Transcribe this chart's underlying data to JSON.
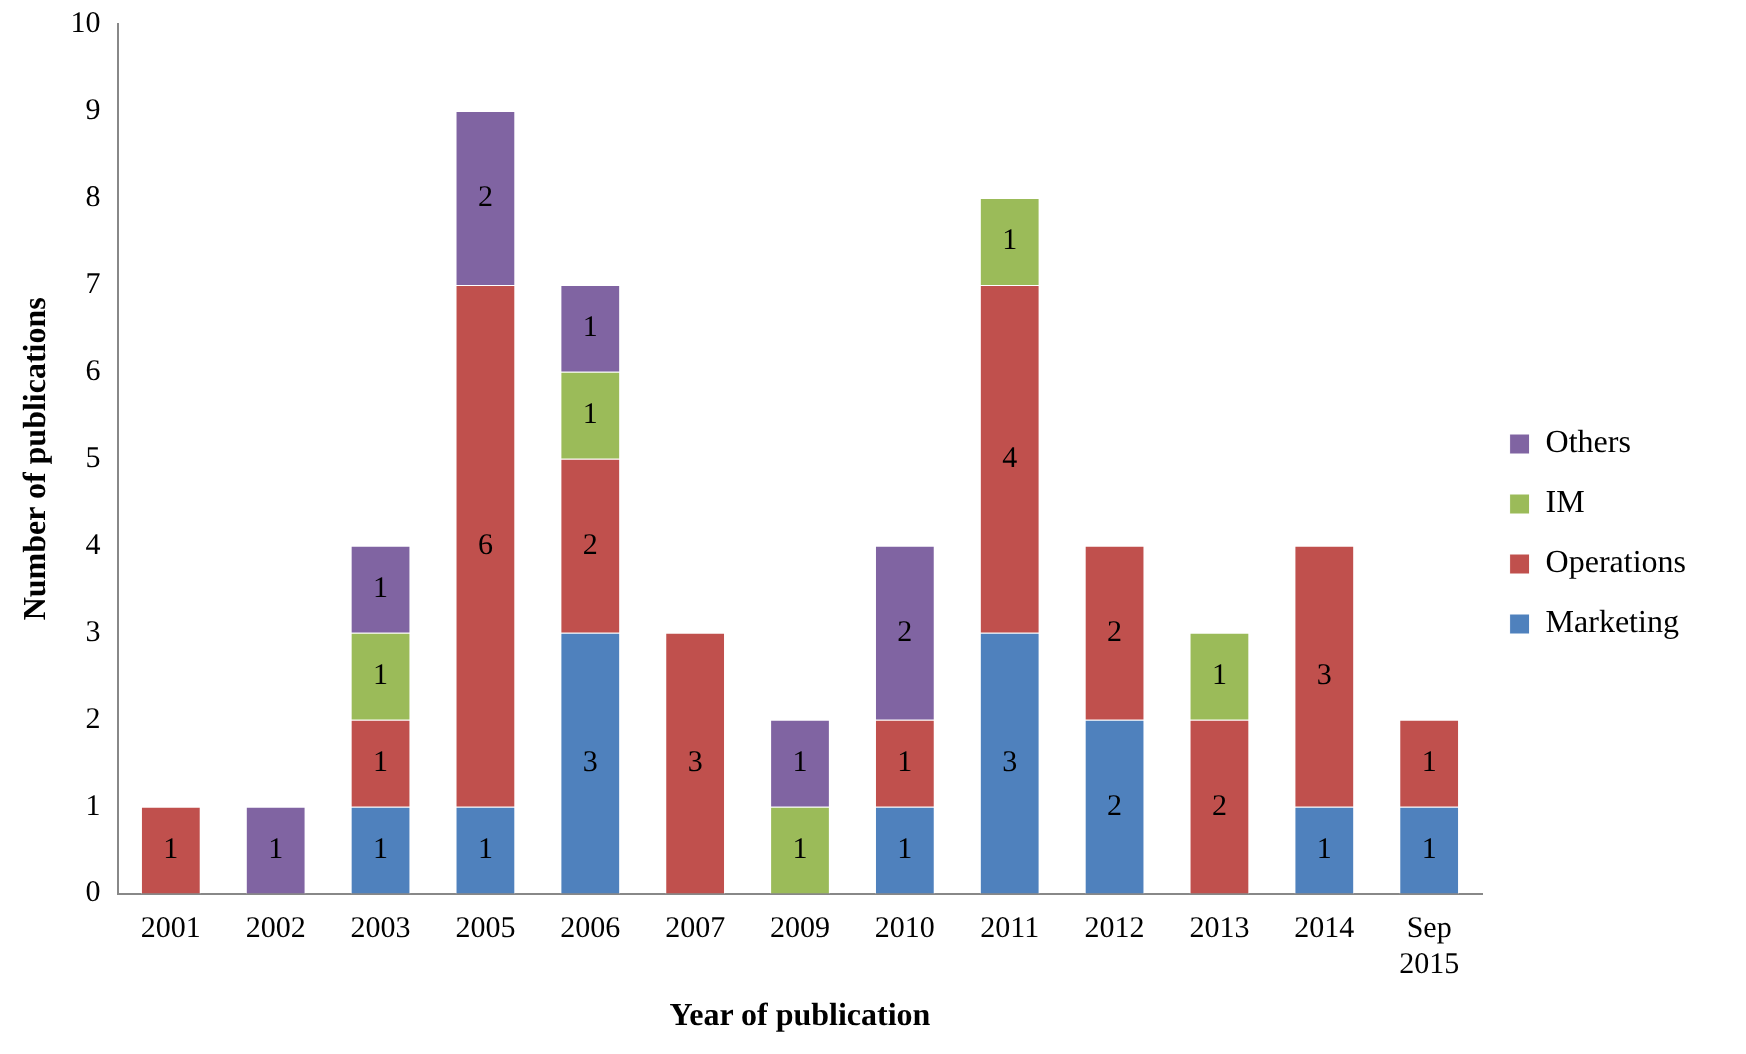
{
  "chart_data": {
    "type": "bar",
    "stacked": true,
    "xlabel": "Year of publication",
    "ylabel": "Number of publications",
    "categories": [
      "2001",
      "2002",
      "2003",
      "2005",
      "2006",
      "2007",
      "2009",
      "2010",
      "2011",
      "2012",
      "2013",
      "2014",
      "Sep 2015"
    ],
    "series": [
      {
        "name": "Marketing",
        "color": "#4f81bd",
        "values": [
          null,
          null,
          1,
          1,
          3,
          null,
          null,
          1,
          3,
          2,
          null,
          1,
          1
        ]
      },
      {
        "name": "Operations",
        "color": "#c0504d",
        "values": [
          1,
          null,
          1,
          6,
          2,
          3,
          null,
          1,
          4,
          2,
          2,
          3,
          1
        ]
      },
      {
        "name": "IM",
        "color": "#9bbb59",
        "values": [
          null,
          null,
          1,
          null,
          1,
          null,
          1,
          null,
          1,
          null,
          1,
          null,
          null
        ]
      },
      {
        "name": "Others",
        "color": "#8064a2",
        "values": [
          null,
          1,
          1,
          2,
          1,
          null,
          1,
          2,
          null,
          null,
          null,
          null,
          null
        ]
      }
    ],
    "ylim": [
      0,
      10
    ],
    "yticks": [
      0,
      1,
      2,
      3,
      4,
      5,
      6,
      7,
      8,
      9,
      10
    ],
    "grid": false,
    "legend": "right",
    "data_labels": true
  }
}
